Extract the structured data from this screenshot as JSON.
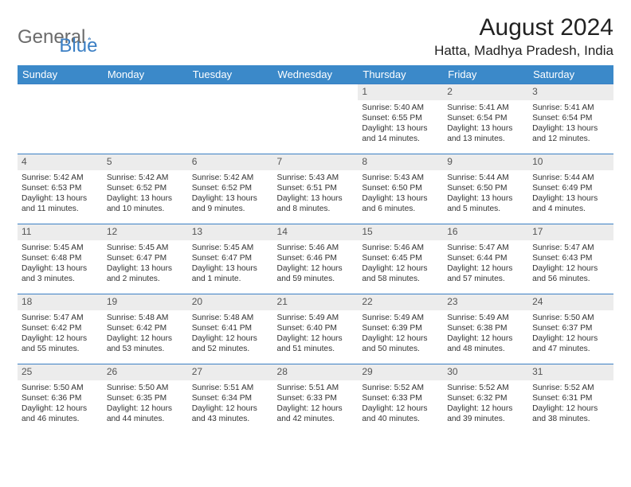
{
  "logo": {
    "general": "General",
    "blue": "Blue"
  },
  "title": "August 2024",
  "location": "Hatta, Madhya Pradesh, India",
  "colors": {
    "header_bg": "#3b89c9",
    "header_text": "#ffffff",
    "row_border": "#3b7fc4",
    "daynum_bg": "#ececec",
    "daynum_text": "#555555",
    "body_text": "#333333",
    "logo_grey": "#6b6b6b",
    "logo_blue": "#3b7fc4"
  },
  "daysOfWeek": [
    "Sunday",
    "Monday",
    "Tuesday",
    "Wednesday",
    "Thursday",
    "Friday",
    "Saturday"
  ],
  "weeks": [
    [
      null,
      null,
      null,
      null,
      {
        "n": "1",
        "sr": "5:40 AM",
        "ss": "6:55 PM",
        "dl": "13 hours and 14 minutes."
      },
      {
        "n": "2",
        "sr": "5:41 AM",
        "ss": "6:54 PM",
        "dl": "13 hours and 13 minutes."
      },
      {
        "n": "3",
        "sr": "5:41 AM",
        "ss": "6:54 PM",
        "dl": "13 hours and 12 minutes."
      }
    ],
    [
      {
        "n": "4",
        "sr": "5:42 AM",
        "ss": "6:53 PM",
        "dl": "13 hours and 11 minutes."
      },
      {
        "n": "5",
        "sr": "5:42 AM",
        "ss": "6:52 PM",
        "dl": "13 hours and 10 minutes."
      },
      {
        "n": "6",
        "sr": "5:42 AM",
        "ss": "6:52 PM",
        "dl": "13 hours and 9 minutes."
      },
      {
        "n": "7",
        "sr": "5:43 AM",
        "ss": "6:51 PM",
        "dl": "13 hours and 8 minutes."
      },
      {
        "n": "8",
        "sr": "5:43 AM",
        "ss": "6:50 PM",
        "dl": "13 hours and 6 minutes."
      },
      {
        "n": "9",
        "sr": "5:44 AM",
        "ss": "6:50 PM",
        "dl": "13 hours and 5 minutes."
      },
      {
        "n": "10",
        "sr": "5:44 AM",
        "ss": "6:49 PM",
        "dl": "13 hours and 4 minutes."
      }
    ],
    [
      {
        "n": "11",
        "sr": "5:45 AM",
        "ss": "6:48 PM",
        "dl": "13 hours and 3 minutes."
      },
      {
        "n": "12",
        "sr": "5:45 AM",
        "ss": "6:47 PM",
        "dl": "13 hours and 2 minutes."
      },
      {
        "n": "13",
        "sr": "5:45 AM",
        "ss": "6:47 PM",
        "dl": "13 hours and 1 minute."
      },
      {
        "n": "14",
        "sr": "5:46 AM",
        "ss": "6:46 PM",
        "dl": "12 hours and 59 minutes."
      },
      {
        "n": "15",
        "sr": "5:46 AM",
        "ss": "6:45 PM",
        "dl": "12 hours and 58 minutes."
      },
      {
        "n": "16",
        "sr": "5:47 AM",
        "ss": "6:44 PM",
        "dl": "12 hours and 57 minutes."
      },
      {
        "n": "17",
        "sr": "5:47 AM",
        "ss": "6:43 PM",
        "dl": "12 hours and 56 minutes."
      }
    ],
    [
      {
        "n": "18",
        "sr": "5:47 AM",
        "ss": "6:42 PM",
        "dl": "12 hours and 55 minutes."
      },
      {
        "n": "19",
        "sr": "5:48 AM",
        "ss": "6:42 PM",
        "dl": "12 hours and 53 minutes."
      },
      {
        "n": "20",
        "sr": "5:48 AM",
        "ss": "6:41 PM",
        "dl": "12 hours and 52 minutes."
      },
      {
        "n": "21",
        "sr": "5:49 AM",
        "ss": "6:40 PM",
        "dl": "12 hours and 51 minutes."
      },
      {
        "n": "22",
        "sr": "5:49 AM",
        "ss": "6:39 PM",
        "dl": "12 hours and 50 minutes."
      },
      {
        "n": "23",
        "sr": "5:49 AM",
        "ss": "6:38 PM",
        "dl": "12 hours and 48 minutes."
      },
      {
        "n": "24",
        "sr": "5:50 AM",
        "ss": "6:37 PM",
        "dl": "12 hours and 47 minutes."
      }
    ],
    [
      {
        "n": "25",
        "sr": "5:50 AM",
        "ss": "6:36 PM",
        "dl": "12 hours and 46 minutes."
      },
      {
        "n": "26",
        "sr": "5:50 AM",
        "ss": "6:35 PM",
        "dl": "12 hours and 44 minutes."
      },
      {
        "n": "27",
        "sr": "5:51 AM",
        "ss": "6:34 PM",
        "dl": "12 hours and 43 minutes."
      },
      {
        "n": "28",
        "sr": "5:51 AM",
        "ss": "6:33 PM",
        "dl": "12 hours and 42 minutes."
      },
      {
        "n": "29",
        "sr": "5:52 AM",
        "ss": "6:33 PM",
        "dl": "12 hours and 40 minutes."
      },
      {
        "n": "30",
        "sr": "5:52 AM",
        "ss": "6:32 PM",
        "dl": "12 hours and 39 minutes."
      },
      {
        "n": "31",
        "sr": "5:52 AM",
        "ss": "6:31 PM",
        "dl": "12 hours and 38 minutes."
      }
    ]
  ],
  "labels": {
    "sunrise": "Sunrise:",
    "sunset": "Sunset:",
    "daylight": "Daylight:"
  }
}
